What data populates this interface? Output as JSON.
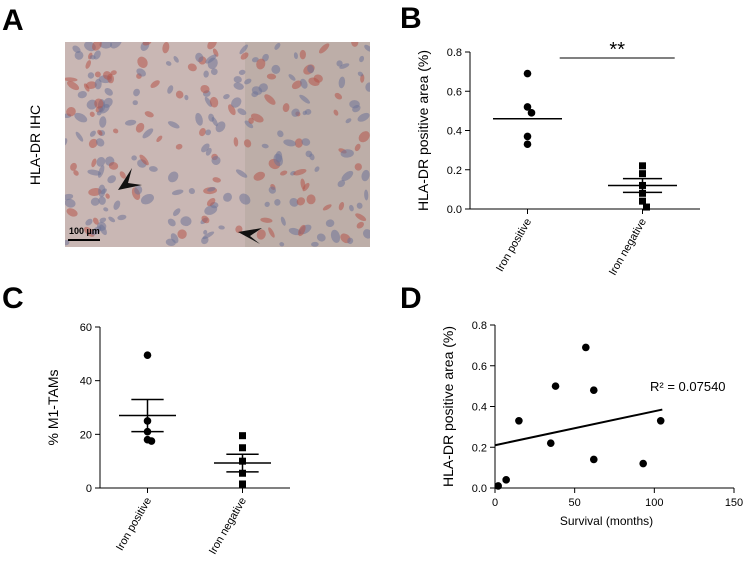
{
  "panel_a": {
    "label": "A",
    "ylabel": "HLA-DR IHC",
    "scale_bar": "100 µm"
  },
  "chart_data": [
    {
      "type": "dotplot",
      "panel_label": "B",
      "ylabel": "HLA-DR positive area (%)",
      "categories": [
        "Iron positive",
        "Iron negative"
      ],
      "groups": [
        {
          "marker": "circle",
          "color": "#000000",
          "values": [
            0.69,
            0.52,
            0.49,
            0.37,
            0.33
          ],
          "mean": 0.46
        },
        {
          "marker": "square",
          "color": "#000000",
          "values": [
            0.22,
            0.18,
            0.12,
            0.08,
            0.04,
            0.01
          ],
          "mean": 0.12,
          "sem": 0.035
        }
      ],
      "significance": "**",
      "ylim": [
        0,
        0.8
      ],
      "yticks": [
        {
          "value": 0,
          "label": "0.0"
        },
        0.2,
        0.4,
        0.6,
        0.8
      ]
    },
    {
      "type": "dotplot",
      "panel_label": "C",
      "ylabel": "% M1-TAMs",
      "categories": [
        "Iron positive",
        "Iron negative"
      ],
      "groups": [
        {
          "marker": "circle",
          "color": "#000000",
          "values": [
            49.5,
            25,
            21,
            18,
            17.5
          ],
          "mean": 27,
          "sem": 6
        },
        {
          "marker": "square",
          "color": "#000000",
          "values": [
            19.5,
            15,
            10,
            5.5,
            1.5
          ],
          "mean": 9.3,
          "sem": 3.3
        }
      ],
      "ylim": [
        0,
        60
      ],
      "yticks": [
        0,
        20,
        40,
        60
      ]
    },
    {
      "type": "scatter",
      "panel_label": "D",
      "ylabel": "HLA-DR positive area (%)",
      "xlabel": "Survival (months)",
      "x": [
        2,
        7,
        15,
        35,
        38,
        57,
        62,
        62,
        93,
        104
      ],
      "y": [
        0.01,
        0.04,
        0.33,
        0.22,
        0.5,
        0.69,
        0.48,
        0.14,
        0.12,
        0.33
      ],
      "color": "#000000",
      "fit": {
        "x": [
          0,
          105
        ],
        "y": [
          0.21,
          0.385
        ]
      },
      "annotation": "R² = 0.07540",
      "xlim": [
        0,
        150
      ],
      "xticks": [
        0,
        50,
        100,
        150
      ],
      "ylim": [
        0,
        0.8
      ],
      "yticks": [
        {
          "value": 0,
          "label": "0.0"
        },
        0.2,
        0.4,
        0.6,
        0.8
      ]
    }
  ]
}
